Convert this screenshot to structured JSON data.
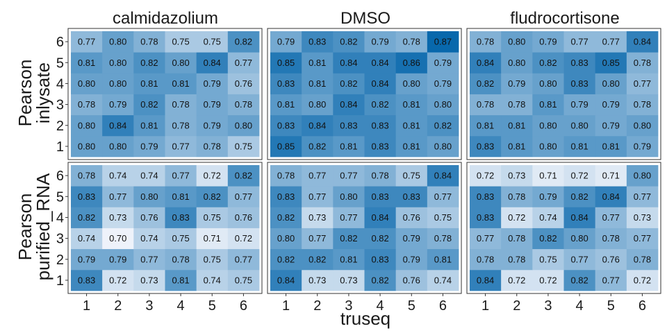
{
  "chart_data": {
    "type": "heatmap",
    "xlabel": "truseq",
    "x_categories": [
      "1",
      "2",
      "3",
      "4",
      "5",
      "6"
    ],
    "y_categories": [
      "1",
      "2",
      "3",
      "4",
      "5",
      "6"
    ],
    "column_facets": [
      "calmidazolium",
      "DMSO",
      "fludrocortisone"
    ],
    "row_facets": [
      {
        "label_line1": "Pearson",
        "label_line2": "inlysate"
      },
      {
        "label_line1": "Pearson",
        "label_line2": "purified_RNA"
      }
    ],
    "value_range": [
      0.7,
      0.87
    ],
    "colors": {
      "low": "#eef2fa",
      "high": "#0868ac",
      "panel_border": "#333333"
    },
    "legend": "none",
    "grid": false,
    "panels": [
      {
        "row": 0,
        "col": 0,
        "values": [
          [
            0.8,
            0.8,
            0.79,
            0.77,
            0.78,
            0.75
          ],
          [
            0.8,
            0.84,
            0.81,
            0.78,
            0.79,
            0.8
          ],
          [
            0.78,
            0.79,
            0.82,
            0.78,
            0.79,
            0.78
          ],
          [
            0.8,
            0.8,
            0.81,
            0.81,
            0.79,
            0.76
          ],
          [
            0.81,
            0.8,
            0.82,
            0.8,
            0.84,
            0.77
          ],
          [
            0.77,
            0.8,
            0.78,
            0.75,
            0.75,
            0.82
          ]
        ]
      },
      {
        "row": 0,
        "col": 1,
        "values": [
          [
            0.85,
            0.82,
            0.81,
            0.83,
            0.81,
            0.8
          ],
          [
            0.83,
            0.84,
            0.83,
            0.83,
            0.81,
            0.82
          ],
          [
            0.81,
            0.8,
            0.84,
            0.82,
            0.81,
            0.8
          ],
          [
            0.83,
            0.81,
            0.82,
            0.84,
            0.8,
            0.79
          ],
          [
            0.85,
            0.81,
            0.84,
            0.84,
            0.86,
            0.79
          ],
          [
            0.79,
            0.83,
            0.82,
            0.79,
            0.78,
            0.87
          ]
        ]
      },
      {
        "row": 0,
        "col": 2,
        "values": [
          [
            0.83,
            0.81,
            0.8,
            0.81,
            0.81,
            0.79
          ],
          [
            0.81,
            0.81,
            0.8,
            0.8,
            0.79,
            0.8
          ],
          [
            0.78,
            0.78,
            0.81,
            0.79,
            0.79,
            0.78
          ],
          [
            0.82,
            0.79,
            0.8,
            0.83,
            0.8,
            0.77
          ],
          [
            0.84,
            0.8,
            0.82,
            0.83,
            0.85,
            0.78
          ],
          [
            0.78,
            0.8,
            0.79,
            0.77,
            0.77,
            0.84
          ]
        ]
      },
      {
        "row": 1,
        "col": 0,
        "values": [
          [
            0.83,
            0.72,
            0.73,
            0.81,
            0.74,
            0.75
          ],
          [
            0.79,
            0.79,
            0.77,
            0.78,
            0.75,
            0.77
          ],
          [
            0.74,
            0.7,
            0.74,
            0.75,
            0.71,
            0.72
          ],
          [
            0.82,
            0.73,
            0.76,
            0.83,
            0.75,
            0.76
          ],
          [
            0.83,
            0.77,
            0.8,
            0.81,
            0.82,
            0.77
          ],
          [
            0.78,
            0.74,
            0.74,
            0.77,
            0.72,
            0.82
          ]
        ]
      },
      {
        "row": 1,
        "col": 1,
        "values": [
          [
            0.84,
            0.73,
            0.73,
            0.82,
            0.76,
            0.74
          ],
          [
            0.82,
            0.82,
            0.81,
            0.83,
            0.79,
            0.81
          ],
          [
            0.8,
            0.77,
            0.82,
            0.82,
            0.79,
            0.78
          ],
          [
            0.82,
            0.73,
            0.77,
            0.84,
            0.76,
            0.75
          ],
          [
            0.83,
            0.77,
            0.8,
            0.83,
            0.83,
            0.77
          ],
          [
            0.78,
            0.77,
            0.77,
            0.78,
            0.75,
            0.84
          ]
        ]
      },
      {
        "row": 1,
        "col": 2,
        "values": [
          [
            0.84,
            0.72,
            0.72,
            0.82,
            0.77,
            0.72
          ],
          [
            0.78,
            0.78,
            0.75,
            0.77,
            0.76,
            0.78
          ],
          [
            0.77,
            0.78,
            0.82,
            0.8,
            0.78,
            0.77
          ],
          [
            0.83,
            0.72,
            0.74,
            0.84,
            0.77,
            0.73
          ],
          [
            0.83,
            0.78,
            0.79,
            0.82,
            0.84,
            0.77
          ],
          [
            0.72,
            0.73,
            0.71,
            0.72,
            0.71,
            0.8
          ]
        ]
      }
    ]
  }
}
